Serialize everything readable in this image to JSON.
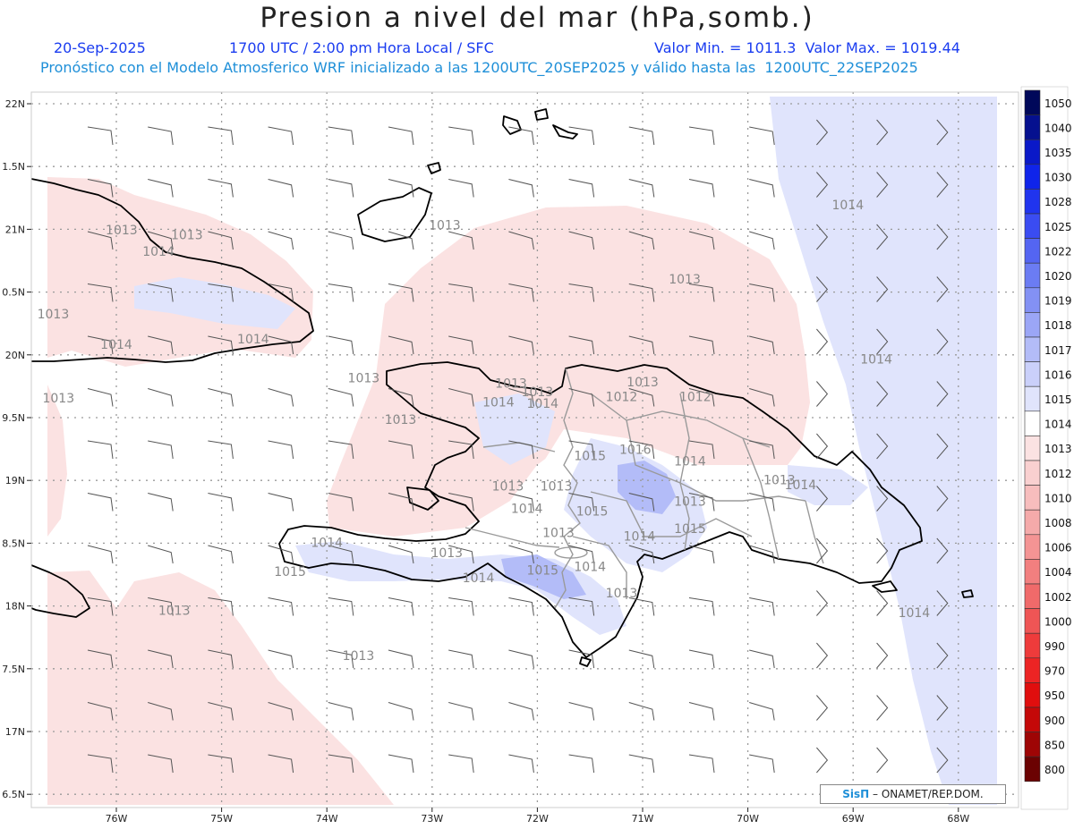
{
  "header": {
    "title": "Presion a nivel del mar (hPa,somb.)",
    "date": "20-Sep-2025",
    "time": "1700 UTC / 2:00 pm Hora Local / SFC",
    "minmax": "Valor Min. = 1011.3  Valor Max. = 1019.44",
    "forecast": "Pronóstico con el Modelo Atmosferico WRF inicializado a las 1200UTC_20SEP2025 y válido hasta las  1200UTC_22SEP2025"
  },
  "axes": {
    "x_labels": [
      "76W",
      "75W",
      "74W",
      "73W",
      "72W",
      "71W",
      "70W",
      "69W",
      "68W"
    ],
    "y_labels": [
      "22N",
      "1.5N",
      "21N",
      "0.5N",
      "20N",
      "9.5N",
      "19N",
      "8.5N",
      "18N",
      "7.5N",
      "17N",
      "6.5N"
    ]
  },
  "contour_labels": [
    {
      "text": "1013",
      "lon": -75.95,
      "lat": 20.96
    },
    {
      "text": "1013",
      "lon": -75.33,
      "lat": 20.92
    },
    {
      "text": "1014",
      "lon": -75.6,
      "lat": 20.79
    },
    {
      "text": "1013",
      "lon": -76.6,
      "lat": 20.29
    },
    {
      "text": "1014",
      "lon": -76.0,
      "lat": 20.05
    },
    {
      "text": "1014",
      "lon": -74.7,
      "lat": 20.09
    },
    {
      "text": "1013",
      "lon": -76.55,
      "lat": 19.62
    },
    {
      "text": "1013",
      "lon": -72.88,
      "lat": 21.0
    },
    {
      "text": "1013",
      "lon": -70.6,
      "lat": 20.57
    },
    {
      "text": "1014",
      "lon": -69.05,
      "lat": 21.16
    },
    {
      "text": "1014",
      "lon": -68.78,
      "lat": 19.93
    },
    {
      "text": "1013",
      "lon": -73.65,
      "lat": 19.78
    },
    {
      "text": "1013",
      "lon": -73.3,
      "lat": 19.45
    },
    {
      "text": "1014",
      "lon": -72.37,
      "lat": 19.59
    },
    {
      "text": "1013",
      "lon": -72.0,
      "lat": 19.67
    },
    {
      "text": "1014",
      "lon": -71.95,
      "lat": 19.58
    },
    {
      "text": "1013",
      "lon": -72.25,
      "lat": 19.74
    },
    {
      "text": "1012",
      "lon": -71.2,
      "lat": 19.63
    },
    {
      "text": "1013",
      "lon": -71.0,
      "lat": 19.75
    },
    {
      "text": "1012",
      "lon": -70.5,
      "lat": 19.63
    },
    {
      "text": "1015",
      "lon": -71.5,
      "lat": 19.16
    },
    {
      "text": "1016",
      "lon": -71.07,
      "lat": 19.21
    },
    {
      "text": "1014",
      "lon": -70.55,
      "lat": 19.12
    },
    {
      "text": "1013",
      "lon": -69.7,
      "lat": 18.97
    },
    {
      "text": "1014",
      "lon": -69.5,
      "lat": 18.93
    },
    {
      "text": "1013",
      "lon": -72.28,
      "lat": 18.92
    },
    {
      "text": "1013",
      "lon": -71.82,
      "lat": 18.92
    },
    {
      "text": "1014",
      "lon": -72.1,
      "lat": 18.74
    },
    {
      "text": "1015",
      "lon": -71.48,
      "lat": 18.72
    },
    {
      "text": "1013",
      "lon": -70.55,
      "lat": 18.8
    },
    {
      "text": "1015",
      "lon": -70.55,
      "lat": 18.58
    },
    {
      "text": "1013",
      "lon": -71.8,
      "lat": 18.55
    },
    {
      "text": "1014",
      "lon": -71.03,
      "lat": 18.52
    },
    {
      "text": "1014",
      "lon": -74.0,
      "lat": 18.47
    },
    {
      "text": "1015",
      "lon": -74.35,
      "lat": 18.24
    },
    {
      "text": "1013",
      "lon": -72.86,
      "lat": 18.39
    },
    {
      "text": "1014",
      "lon": -72.56,
      "lat": 18.19
    },
    {
      "text": "1015",
      "lon": -71.95,
      "lat": 18.25
    },
    {
      "text": "1014",
      "lon": -71.5,
      "lat": 18.28
    },
    {
      "text": "1013",
      "lon": -71.2,
      "lat": 18.07
    },
    {
      "text": "1013",
      "lon": -75.45,
      "lat": 17.93
    },
    {
      "text": "1013",
      "lon": -73.7,
      "lat": 17.57
    },
    {
      "text": "1014",
      "lon": -68.42,
      "lat": 17.91
    }
  ],
  "colorbar": {
    "levels": [
      "1050",
      "1040",
      "1035",
      "1030",
      "1028",
      "1025",
      "1022",
      "1020",
      "1019",
      "1018",
      "1017",
      "1016",
      "1015",
      "1014",
      "1013",
      "1012",
      "1010",
      "1008",
      "1006",
      "1004",
      "1002",
      "1000",
      "990",
      "970",
      "950",
      "900",
      "850",
      "800"
    ],
    "colors": [
      "#00085a",
      "#05108f",
      "#0a19c8",
      "#0f24ea",
      "#2034ee",
      "#3a4cf2",
      "#5465f2",
      "#6b7cf3",
      "#8391f4",
      "#9ba6f6",
      "#b3bcf8",
      "#cad0fa",
      "#e0e4fc",
      "#ffffff",
      "#fbe2e2",
      "#f9d0d0",
      "#f7bdbd",
      "#f5aaaa",
      "#f49494",
      "#f27f7f",
      "#f06a6a",
      "#ef5555",
      "#ee3b3b",
      "#ec2424",
      "#e00e0e",
      "#c40808",
      "#9e0505",
      "#6b0202"
    ]
  },
  "credit": {
    "brand": "SisΠ",
    "text": " – ONAMET/REP.DOM."
  },
  "colors": {
    "land": "#000000",
    "borders": "#9a9a9a",
    "grid": "#9a9a9a",
    "wind": "#555555"
  }
}
